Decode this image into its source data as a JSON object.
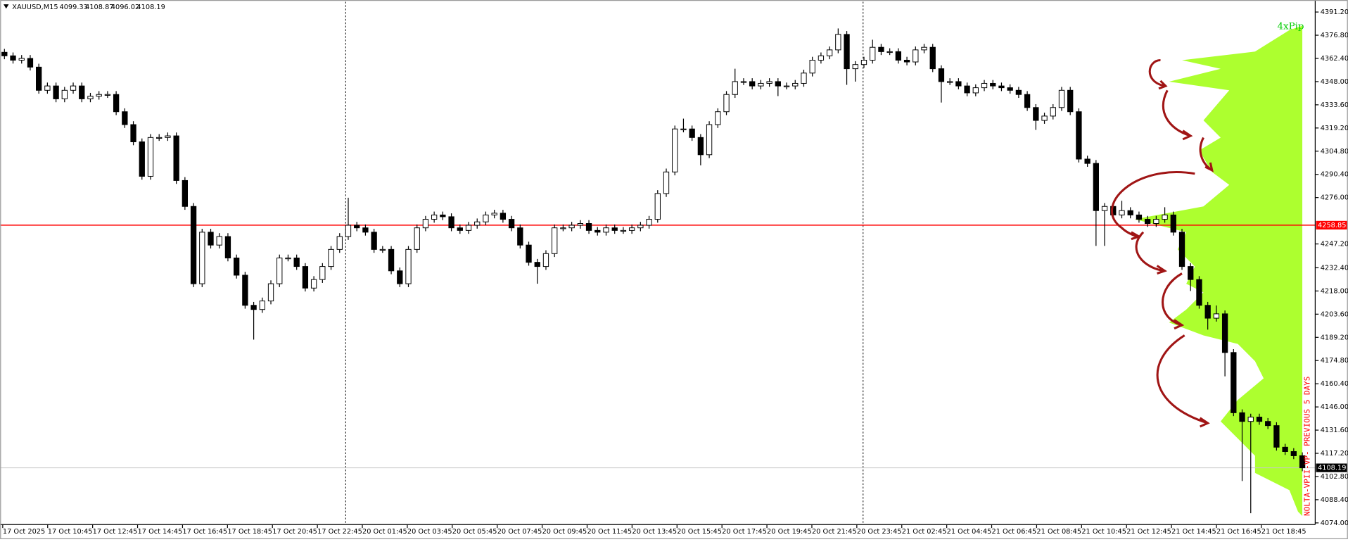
{
  "chart_data": {
    "type": "candlestick",
    "symbol": "XAUUSD,M15",
    "header_values": [
      4099.33,
      4108.87,
      4096.02,
      4108.19
    ],
    "annotation": "4xPip",
    "indicator_label": "NOLTA-VPII-VP- PREVIOUS 5 DAYS",
    "up_color": "#ffffff",
    "down_color": "#000000",
    "profile_color": "#adff2f",
    "ylim": [
      4073.5,
      4397.6
    ],
    "yticks": [
      {
        "value": 4391.2,
        "label": "4391.20"
      },
      {
        "value": 4376.8,
        "label": "4376.80"
      },
      {
        "value": 4362.4,
        "label": "4362.40"
      },
      {
        "value": 4348,
        "label": "4348.00"
      },
      {
        "value": 4333.6,
        "label": "4333.60"
      },
      {
        "value": 4319.2,
        "label": "4319.20"
      },
      {
        "value": 4304.8,
        "label": "4304.80"
      },
      {
        "value": 4290.4,
        "label": "4290.40"
      },
      {
        "value": 4276,
        "label": "4276.00"
      },
      {
        "value": 4247.2,
        "label": "4247.20"
      },
      {
        "value": 4232.4,
        "label": "4232.40"
      },
      {
        "value": 4218,
        "label": "4218.00"
      },
      {
        "value": 4203.6,
        "label": "4203.60"
      },
      {
        "value": 4189.2,
        "label": "4189.20"
      },
      {
        "value": 4174.8,
        "label": "4174.80"
      },
      {
        "value": 4160.4,
        "label": "4160.40"
      },
      {
        "value": 4146,
        "label": "4146.00"
      },
      {
        "value": 4131.6,
        "label": "4131.60"
      },
      {
        "value": 4117.2,
        "label": "4117.20"
      },
      {
        "value": 4102.8,
        "label": "4102.80"
      },
      {
        "value": 4088.4,
        "label": "4088.40"
      },
      {
        "value": 4074,
        "label": "4074.00"
      }
    ],
    "hlines": [
      {
        "value": 4258.85,
        "color": "#ff0000"
      },
      {
        "value": 4108.19,
        "color": "#c8c8c8"
      }
    ],
    "x_labels": [
      "17 Oct 2025",
      "17 Oct 10:45",
      "17 Oct 12:45",
      "17 Oct 14:45",
      "17 Oct 16:45",
      "17 Oct 18:45",
      "17 Oct 20:45",
      "17 Oct 22:45",
      "20 Oct 01:45",
      "20 Oct 03:45",
      "20 Oct 05:45",
      "20 Oct 07:45",
      "20 Oct 09:45",
      "20 Oct 11:45",
      "20 Oct 13:45",
      "20 Oct 15:45",
      "20 Oct 17:45",
      "20 Oct 19:45",
      "20 Oct 21:45",
      "20 Oct 23:45",
      "21 Oct 02:45",
      "21 Oct 04:45",
      "21 Oct 06:45",
      "21 Oct 08:45",
      "21 Oct 10:45",
      "21 Oct 12:45",
      "21 Oct 14:45",
      "21 Oct 16:45",
      "21 Oct 18:45"
    ],
    "ohlc": [
      [
        4366.2,
        4368.3,
        4361.9,
        4364.0
      ],
      [
        4364.0,
        4366.1,
        4359.2,
        4361.3
      ],
      [
        4361.3,
        4364.5,
        4359.2,
        4362.4
      ],
      [
        4362.4,
        4364.5,
        4354.9,
        4357.0
      ],
      [
        4357.0,
        4359.1,
        4340.5,
        4342.6
      ],
      [
        4342.6,
        4347.4,
        4340.5,
        4345.3
      ],
      [
        4345.3,
        4347.4,
        4335.2,
        4337.3
      ],
      [
        4337.3,
        4344.7,
        4335.2,
        4342.6
      ],
      [
        4342.6,
        4347.4,
        4340.5,
        4345.3
      ],
      [
        4345.3,
        4347.4,
        4335.2,
        4337.3
      ],
      [
        4337.3,
        4341.0,
        4335.2,
        4338.9
      ],
      [
        4338.9,
        4342.1,
        4336.8,
        4340.0
      ],
      [
        4340.0,
        4342.1,
        4337.9,
        4340.0
      ],
      [
        4340.0,
        4342.1,
        4327.2,
        4329.3
      ],
      [
        4329.3,
        4331.4,
        4319.2,
        4321.3
      ],
      [
        4321.3,
        4323.4,
        4308.5,
        4310.6
      ],
      [
        4310.6,
        4312.7,
        4287.1,
        4289.2
      ],
      [
        4289.2,
        4315.4,
        4287.1,
        4313.3
      ],
      [
        4313.3,
        4315.4,
        4311.2,
        4313.3
      ],
      [
        4313.3,
        4316.4,
        4311.2,
        4314.3
      ],
      [
        4314.3,
        4316.4,
        4284.5,
        4286.6
      ],
      [
        4286.6,
        4288.7,
        4268.4,
        4270.5
      ],
      [
        4270.5,
        4272.6,
        4220.4,
        4222.5
      ],
      [
        4222.5,
        4256.6,
        4220.4,
        4254.5
      ],
      [
        4254.5,
        4256.6,
        4244.4,
        4246.5
      ],
      [
        4246.5,
        4253.9,
        4244.4,
        4251.8
      ],
      [
        4251.8,
        4253.9,
        4236.4,
        4238.5
      ],
      [
        4238.5,
        4240.6,
        4225.7,
        4227.8
      ],
      [
        4227.8,
        4229.9,
        4207.0,
        4209.1
      ],
      [
        4209.1,
        4211.2,
        4187.8,
        4206.5
      ],
      [
        4206.5,
        4213.9,
        4204.4,
        4211.8
      ],
      [
        4211.8,
        4224.6,
        4209.7,
        4222.5
      ],
      [
        4222.5,
        4240.6,
        4220.4,
        4238.5
      ],
      [
        4238.5,
        4240.6,
        4236.4,
        4238.5
      ],
      [
        4238.5,
        4240.6,
        4231.1,
        4233.2
      ],
      [
        4233.2,
        4235.3,
        4217.7,
        4219.8
      ],
      [
        4219.8,
        4227.2,
        4217.7,
        4225.1
      ],
      [
        4225.1,
        4235.3,
        4223.0,
        4233.2
      ],
      [
        4233.2,
        4245.9,
        4231.1,
        4243.8
      ],
      [
        4243.8,
        4253.9,
        4241.7,
        4251.8
      ],
      [
        4251.8,
        4275.9,
        4249.7,
        4258.8
      ],
      [
        4258.8,
        4260.9,
        4255.1,
        4257.2
      ],
      [
        4257.2,
        4259.3,
        4252.4,
        4254.5
      ],
      [
        4254.5,
        4256.6,
        4241.7,
        4243.8
      ],
      [
        4243.8,
        4245.9,
        4241.7,
        4243.8
      ],
      [
        4243.8,
        4245.9,
        4228.4,
        4230.5
      ],
      [
        4230.5,
        4232.6,
        4220.4,
        4222.5
      ],
      [
        4222.5,
        4245.9,
        4220.4,
        4243.8
      ],
      [
        4243.8,
        4259.3,
        4241.7,
        4257.2
      ],
      [
        4257.2,
        4264.6,
        4255.1,
        4262.5
      ],
      [
        4262.5,
        4267.3,
        4260.4,
        4265.2
      ],
      [
        4265.2,
        4267.3,
        4262.0,
        4264.1
      ],
      [
        4264.1,
        4266.2,
        4255.1,
        4257.2
      ],
      [
        4257.2,
        4259.3,
        4253.5,
        4255.6
      ],
      [
        4255.6,
        4260.9,
        4253.5,
        4258.8
      ],
      [
        4258.8,
        4263.0,
        4256.7,
        4260.9
      ],
      [
        4260.9,
        4267.3,
        4258.8,
        4265.2
      ],
      [
        4265.2,
        4268.4,
        4263.1,
        4266.3
      ],
      [
        4266.3,
        4268.4,
        4260.4,
        4262.5
      ],
      [
        4262.5,
        4264.6,
        4255.1,
        4257.2
      ],
      [
        4257.2,
        4259.3,
        4244.4,
        4246.5
      ],
      [
        4246.5,
        4248.6,
        4233.7,
        4235.8
      ],
      [
        4235.8,
        4237.9,
        4222.5,
        4233.2
      ],
      [
        4233.2,
        4243.3,
        4231.1,
        4241.2
      ],
      [
        4241.2,
        4259.3,
        4239.1,
        4257.2
      ],
      [
        4257.2,
        4259.3,
        4255.1,
        4257.2
      ],
      [
        4257.2,
        4260.9,
        4255.1,
        4258.8
      ],
      [
        4258.8,
        4262.0,
        4256.7,
        4259.9
      ],
      [
        4259.9,
        4262.0,
        4253.5,
        4255.6
      ],
      [
        4255.6,
        4257.7,
        4252.4,
        4254.5
      ],
      [
        4254.5,
        4259.3,
        4252.4,
        4257.2
      ],
      [
        4257.2,
        4259.3,
        4253.5,
        4255.6
      ],
      [
        4255.6,
        4257.7,
        4253.5,
        4255.6
      ],
      [
        4255.6,
        4259.3,
        4253.5,
        4257.2
      ],
      [
        4257.2,
        4260.9,
        4255.1,
        4258.8
      ],
      [
        4258.8,
        4264.6,
        4256.7,
        4262.5
      ],
      [
        4262.5,
        4280.6,
        4260.4,
        4278.5
      ],
      [
        4278.5,
        4294.0,
        4276.4,
        4291.9
      ],
      [
        4291.9,
        4320.7,
        4289.8,
        4318.6
      ],
      [
        4318.6,
        4325.0,
        4316.5,
        4318.6
      ],
      [
        4318.6,
        4320.7,
        4311.2,
        4313.3
      ],
      [
        4313.3,
        4315.4,
        4296.0,
        4302.6
      ],
      [
        4302.6,
        4323.4,
        4300.5,
        4321.3
      ],
      [
        4321.3,
        4331.4,
        4319.2,
        4329.3
      ],
      [
        4329.3,
        4342.1,
        4327.2,
        4340.0
      ],
      [
        4340.0,
        4356.0,
        4337.9,
        4348.0
      ],
      [
        4348.0,
        4350.1,
        4345.9,
        4348.0
      ],
      [
        4348.0,
        4350.1,
        4343.2,
        4345.3
      ],
      [
        4345.3,
        4349.0,
        4343.2,
        4346.9
      ],
      [
        4346.9,
        4350.1,
        4344.8,
        4348.0
      ],
      [
        4348.0,
        4350.1,
        4339.0,
        4345.3
      ],
      [
        4345.3,
        4347.4,
        4343.2,
        4345.3
      ],
      [
        4345.3,
        4349.0,
        4343.2,
        4346.9
      ],
      [
        4346.9,
        4355.4,
        4344.8,
        4353.3
      ],
      [
        4353.3,
        4363.4,
        4351.2,
        4361.3
      ],
      [
        4361.3,
        4366.1,
        4359.2,
        4364.0
      ],
      [
        4364.0,
        4369.8,
        4361.9,
        4367.7
      ],
      [
        4367.7,
        4381.0,
        4365.6,
        4377.3
      ],
      [
        4377.3,
        4379.4,
        4346.0,
        4356.0
      ],
      [
        4356.0,
        4360.7,
        4348.0,
        4358.6
      ],
      [
        4358.6,
        4363.4,
        4356.5,
        4361.3
      ],
      [
        4361.3,
        4374.0,
        4359.2,
        4369.3
      ],
      [
        4369.3,
        4371.4,
        4364.5,
        4366.6
      ],
      [
        4366.6,
        4368.7,
        4364.5,
        4366.6
      ],
      [
        4366.6,
        4368.7,
        4359.2,
        4361.3
      ],
      [
        4361.3,
        4363.4,
        4358.1,
        4360.2
      ],
      [
        4360.2,
        4369.8,
        4358.1,
        4367.7
      ],
      [
        4367.7,
        4371.4,
        4365.6,
        4369.3
      ],
      [
        4369.3,
        4371.4,
        4353.9,
        4356.0
      ],
      [
        4356.0,
        4358.1,
        4335.0,
        4348.0
      ],
      [
        4348.0,
        4350.1,
        4345.9,
        4348.0
      ],
      [
        4348.0,
        4350.1,
        4343.2,
        4345.3
      ],
      [
        4345.3,
        4347.4,
        4338.9,
        4341.0
      ],
      [
        4341.0,
        4346.3,
        4338.9,
        4344.2
      ],
      [
        4344.2,
        4349.0,
        4342.1,
        4346.9
      ],
      [
        4346.9,
        4349.0,
        4343.2,
        4345.3
      ],
      [
        4345.3,
        4347.4,
        4342.1,
        4344.2
      ],
      [
        4344.2,
        4346.3,
        4340.5,
        4342.6
      ],
      [
        4342.6,
        4344.7,
        4337.9,
        4340.0
      ],
      [
        4340.0,
        4342.1,
        4329.8,
        4331.9
      ],
      [
        4331.9,
        4334.0,
        4318.0,
        4323.9
      ],
      [
        4323.9,
        4328.7,
        4321.8,
        4326.6
      ],
      [
        4326.6,
        4334.0,
        4324.5,
        4331.9
      ],
      [
        4331.9,
        4344.7,
        4329.8,
        4342.6
      ],
      [
        4342.6,
        4344.7,
        4327.2,
        4329.3
      ],
      [
        4329.3,
        4331.4,
        4297.8,
        4299.9
      ],
      [
        4299.9,
        4302.0,
        4295.1,
        4297.2
      ],
      [
        4297.2,
        4299.3,
        4246.0,
        4267.9
      ],
      [
        4267.9,
        4272.6,
        4246.0,
        4270.5
      ],
      [
        4270.5,
        4272.6,
        4263.1,
        4265.2
      ],
      [
        4265.2,
        4274.0,
        4263.1,
        4267.9
      ],
      [
        4267.9,
        4270.0,
        4263.1,
        4265.2
      ],
      [
        4265.2,
        4267.3,
        4260.4,
        4262.5
      ],
      [
        4262.5,
        4264.6,
        4257.8,
        4259.9
      ],
      [
        4259.9,
        4264.6,
        4257.8,
        4262.5
      ],
      [
        4262.5,
        4270.0,
        4260.4,
        4265.2
      ],
      [
        4265.2,
        4267.3,
        4252.4,
        4254.5
      ],
      [
        4254.5,
        4256.6,
        4231.1,
        4233.2
      ],
      [
        4233.2,
        4235.3,
        4218.0,
        4225.1
      ],
      [
        4225.1,
        4227.2,
        4207.0,
        4209.1
      ],
      [
        4209.1,
        4211.2,
        4194.0,
        4201.1
      ],
      [
        4201.1,
        4209.0,
        4199.0,
        4203.8
      ],
      [
        4203.8,
        4205.9,
        4165.0,
        4179.8
      ],
      [
        4179.8,
        4181.9,
        4140.3,
        4142.4
      ],
      [
        4142.4,
        4144.5,
        4100.0,
        4137.0
      ],
      [
        4137.0,
        4141.8,
        4080.0,
        4139.7
      ],
      [
        4139.7,
        4141.8,
        4134.9,
        4137.0
      ],
      [
        4137.0,
        4139.1,
        4132.3,
        4134.4
      ],
      [
        4134.4,
        4136.5,
        4118.9,
        4121.0
      ],
      [
        4121.0,
        4123.1,
        4116.2,
        4118.3
      ],
      [
        4118.3,
        4120.4,
        4113.6,
        4115.7
      ],
      [
        4115.7,
        4117.8,
        4106.1,
        4108.2
      ]
    ]
  }
}
